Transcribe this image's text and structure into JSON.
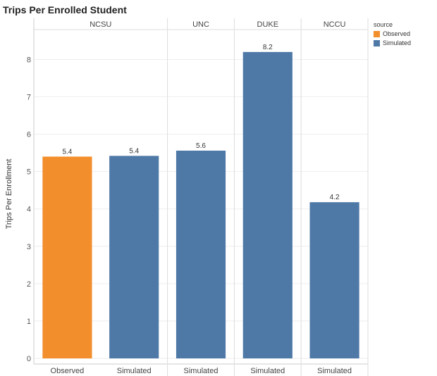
{
  "title": "Trips Per Enrolled Student",
  "legend": {
    "title": "source",
    "items": [
      {
        "label": "Observed",
        "color": "#F28E2B"
      },
      {
        "label": "Simulated",
        "color": "#4E79A7"
      }
    ]
  },
  "chart_data": {
    "type": "bar",
    "ylabel": "Trips Per Enrollment",
    "xlabel": "",
    "ylim": [
      0,
      8.8
    ],
    "yticks": [
      0,
      1,
      2,
      3,
      4,
      5,
      6,
      7,
      8
    ],
    "grid": true,
    "legend_position": "top-right",
    "panels": [
      {
        "name": "NCSU",
        "bars": [
          {
            "category": "Observed",
            "value": 5.4,
            "label": "5.4",
            "source": "Observed"
          },
          {
            "category": "Simulated",
            "value": 5.42,
            "label": "5.4",
            "source": "Simulated"
          }
        ]
      },
      {
        "name": "UNC",
        "bars": [
          {
            "category": "Simulated",
            "value": 5.56,
            "label": "5.6",
            "source": "Simulated"
          }
        ]
      },
      {
        "name": "DUKE",
        "bars": [
          {
            "category": "Simulated",
            "value": 8.2,
            "label": "8.2",
            "source": "Simulated"
          }
        ]
      },
      {
        "name": "NCCU",
        "bars": [
          {
            "category": "Simulated",
            "value": 4.18,
            "label": "4.2",
            "source": "Simulated"
          }
        ]
      }
    ]
  }
}
